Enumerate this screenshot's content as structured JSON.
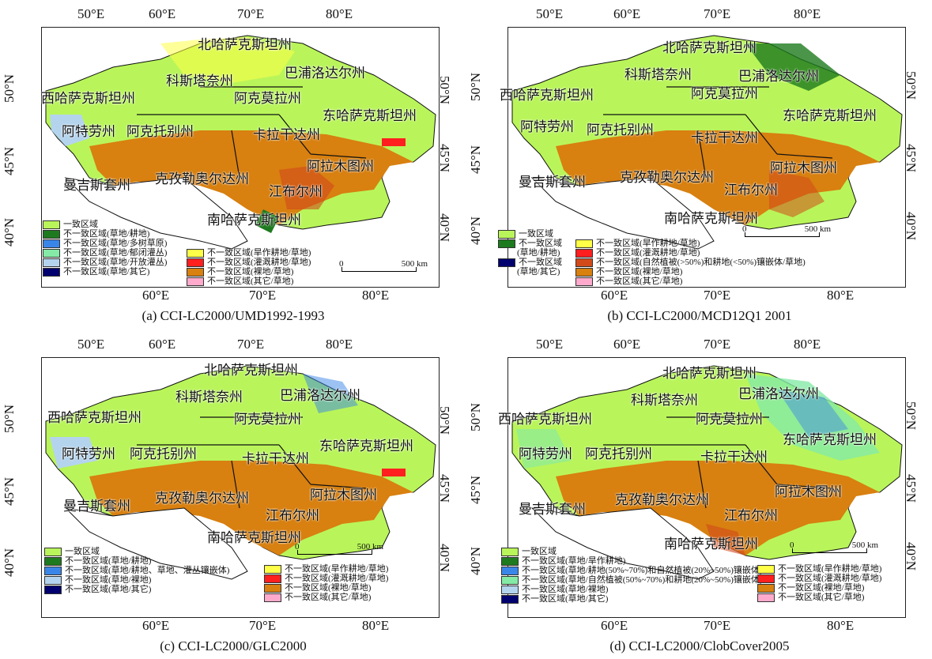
{
  "colors": {
    "consistent": "#b9f55a",
    "grass_crop": "#1e7a1e",
    "grass_woody": "#3a86e8",
    "grass_closed_shrub": "#84eaa6",
    "grass_open_shrub": "#b4d4ee",
    "grass_other": "#00006e",
    "dry_crop_grass": "#ffff47",
    "irr_crop_grass": "#ff1f1f",
    "natural_mosaic": "#d24a1a",
    "bare_grass": "#d88010",
    "other_grass": "#ffaacc",
    "mosaic_50_70": "#3a86e8",
    "natural_50_70": "#84eaa6"
  },
  "panels": [
    {
      "caption": "(a) CCI-LC2000/UMD1992-1993",
      "top_lon": [
        "50°E",
        "60°E",
        "70°E",
        "80°E"
      ],
      "bottom_lon": [
        "60°E",
        "70°E",
        "80°E"
      ],
      "left_lat": [
        "50°N",
        "45°N",
        "40°N"
      ],
      "right_lat": [
        "50°N",
        "45°N",
        "40°N"
      ],
      "regions": [
        "北哈萨克斯坦州",
        "科斯塔奈州",
        "巴浦洛达尔州",
        "西哈萨克斯坦州",
        "阿克莫拉州",
        "东哈萨克斯坦州",
        "阿特劳州",
        "阿克托别州",
        "卡拉干达州",
        "曼吉斯套州",
        "克孜勒奥尔达州",
        "阿拉木图州",
        "江布尔州",
        "南哈萨克斯坦州"
      ],
      "legend_left": [
        "一致区域",
        "不一致区域(草地/耕地)",
        "不一致区域(草地/多树草原)",
        "不一致区域(草地/郁闭灌丛)",
        "不一致区域(草地/开放灌丛)",
        "不一致区域(草地/其它)"
      ],
      "legend_right": [
        "不一致区域(旱作耕地/草地)",
        "不一致区域(灌溉耕地/草地)",
        "不一致区域(裸地/草地)",
        "不一致区域(其它/草地)"
      ],
      "scale_zero": "0",
      "scale_label": "500 km"
    },
    {
      "caption": "(b) CCI-LC2000/MCD12Q1 2001",
      "top_lon": [
        "50°E",
        "60°E",
        "70°E",
        "80°E"
      ],
      "bottom_lon": [
        "60°E",
        "70°E",
        "80°E"
      ],
      "left_lat": [
        "50°N",
        "45°N",
        "40°N"
      ],
      "right_lat": [
        "50°N",
        "45°N",
        "40°N"
      ],
      "regions": [
        "北哈萨克斯坦州",
        "科斯塔奈州",
        "巴浦洛达尔州",
        "西哈萨克斯坦州",
        "阿克莫拉州",
        "东哈萨克斯坦州",
        "阿特劳州",
        "阿克托别州",
        "卡拉干达州",
        "曼吉斯套州",
        "克孜勒奥尔达州",
        "阿拉木图州",
        "江布尔州",
        "南哈萨克斯坦州"
      ],
      "legend_left": [
        "一致区域",
        "不一致区域",
        "(草地/耕地)",
        "不一致区域",
        "(草地/其它)"
      ],
      "legend_right": [
        "不一致区域(旱作耕地/草地)",
        "不一致区域(灌溉耕地/草地)",
        "不一致区域(自然植被(>50%)和耕地(<50%)镶嵌体/草地)",
        "不一致区域(裸地/草地)",
        "不一致区域(其它/草地)"
      ],
      "scale_zero": "0",
      "scale_label": "500 km"
    },
    {
      "caption": "(c) CCI-LC2000/GLC2000",
      "top_lon": [
        "50°E",
        "60°E",
        "70°E",
        "80°E"
      ],
      "bottom_lon": [
        "60°E",
        "70°E",
        "80°E"
      ],
      "left_lat": [
        "50°N",
        "45°N",
        "40°N"
      ],
      "right_lat": [
        "50°N",
        "45°N",
        "40°N"
      ],
      "regions": [
        "北哈萨克斯坦州",
        "科斯塔奈州",
        "巴浦洛达尔州",
        "西哈萨克斯坦州",
        "阿克莫拉州",
        "东哈萨克斯坦州",
        "阿特劳州",
        "阿克托别州",
        "卡拉干达州",
        "曼吉斯套州",
        "克孜勒奥尔达州",
        "阿拉木图州",
        "江布尔州",
        "南哈萨克斯坦州"
      ],
      "legend_left": [
        "一致区域",
        "不一致区域(草地/耕地)",
        "不一致区域(草地/耕地、草地、灌丛镶嵌体)",
        "不一致区域(草地/裸地)",
        "不一致区域(草地/其它)"
      ],
      "legend_right": [
        "不一致区域(旱作耕地/草地)",
        "不一致区域(灌溉耕地/草地)",
        "不一致区域(裸地/草地)",
        "不一致区域(其它/草地)"
      ],
      "scale_zero": "0",
      "scale_label": "500 km"
    },
    {
      "caption": "(d) CCI-LC2000/ClobCover2005",
      "top_lon": [
        "50°E",
        "60°E",
        "70°E",
        "80°E"
      ],
      "bottom_lon": [
        "60°E",
        "70°E",
        "80°E"
      ],
      "left_lat": [
        "50°N",
        "45°N",
        "40°N"
      ],
      "right_lat": [
        "50°N",
        "45°N",
        "40°N"
      ],
      "regions": [
        "北哈萨克斯坦州",
        "科斯塔奈州",
        "巴浦洛达尔州",
        "西哈萨克斯坦州",
        "阿克莫拉州",
        "东哈萨克斯坦州",
        "阿特劳州",
        "阿克托别州",
        "卡拉干达州",
        "曼吉斯套州",
        "克孜勒奥尔达州",
        "阿拉木图州",
        "江布尔州",
        "南哈萨克斯坦州"
      ],
      "legend_left": [
        "一致区域",
        "不一致区域(草地/旱作耕地)",
        "不一致区域(草地/耕地(50%~70%)和自然植被(20%~50%)镶嵌体)",
        "不一致区域(草地/自然植被(50%~70%)和耕地(20%~50%)镶嵌体)",
        "不一致区域(草地/裸地)",
        "不一致区域(草地/其它)"
      ],
      "legend_right": [
        "不一致区域(旱作耕地/草地)",
        "不一致区域(灌溉耕地/草地)",
        "不一致区域(裸地/草地)",
        "不一致区域(其它/草地)"
      ],
      "scale_zero": "0",
      "scale_label": "500 km"
    }
  ]
}
